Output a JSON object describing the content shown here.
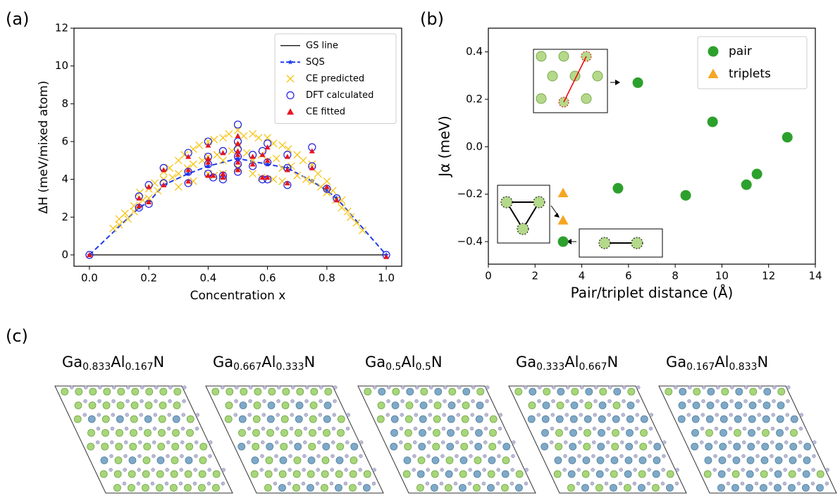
{
  "panel_labels": [
    "(a)",
    "(b)",
    "(c)"
  ],
  "chart_data": [
    {
      "type": "scatter",
      "xlabel": "Concentration x",
      "ylabel": "ΔH (meV/mixed atom)",
      "xlim": [
        -0.052,
        1.052
      ],
      "ylim": [
        -0.6,
        12
      ],
      "xticks": [
        {
          "value": 0,
          "label": "0.0"
        },
        0.2,
        0.4,
        0.6,
        0.8,
        {
          "value": 1,
          "label": "1.0"
        }
      ],
      "yticks": [
        0,
        2,
        4,
        6,
        8,
        10,
        12
      ],
      "legend": "upper right",
      "series": [
        {
          "name": "GS line",
          "style": "line",
          "color": "#000000",
          "x": [
            0,
            1
          ],
          "values": [
            0,
            0
          ]
        },
        {
          "name": "SQS",
          "style": "dashed-star",
          "color": "#1f3ee8",
          "x": [
            0,
            0.167,
            0.2,
            0.25,
            0.333,
            0.4,
            0.5,
            0.6,
            0.667,
            0.75,
            0.8,
            0.833,
            1
          ],
          "values": [
            0,
            2.5,
            2.8,
            3.7,
            4.3,
            4.7,
            5.1,
            4.8,
            4.6,
            3.9,
            3.4,
            3.0,
            0
          ]
        },
        {
          "name": "CE predicted",
          "style": "x",
          "color": "#f5c518",
          "x": [
            0.08,
            0.1,
            0.1,
            0.12,
            0.13,
            0.15,
            0.15,
            0.17,
            0.18,
            0.2,
            0.2,
            0.22,
            0.23,
            0.25,
            0.25,
            0.27,
            0.28,
            0.3,
            0.3,
            0.32,
            0.33,
            0.35,
            0.35,
            0.37,
            0.38,
            0.4,
            0.4,
            0.42,
            0.43,
            0.45,
            0.45,
            0.47,
            0.48,
            0.5,
            0.5,
            0.52,
            0.53,
            0.55,
            0.55,
            0.57,
            0.58,
            0.6,
            0.6,
            0.62,
            0.63,
            0.65,
            0.65,
            0.67,
            0.68,
            0.7,
            0.7,
            0.72,
            0.73,
            0.75,
            0.75,
            0.77,
            0.78,
            0.8,
            0.8,
            0.82,
            0.83,
            0.85,
            0.85,
            0.87,
            0.88,
            0.9,
            0.92,
            0.35,
            0.42,
            0.45,
            0.55,
            0.58,
            0.62,
            0.5,
            0.4,
            0.3,
            0.65
          ],
          "values": [
            1.4,
            1.9,
            1.6,
            2.2,
            1.9,
            2.6,
            2.3,
            3.3,
            2.9,
            3.5,
            3.0,
            3.8,
            3.4,
            4.4,
            4.0,
            4.6,
            4.1,
            5.0,
            4.3,
            5.3,
            4.6,
            5.6,
            4.8,
            5.8,
            5.0,
            6.0,
            5.2,
            6.1,
            5.3,
            6.2,
            5.0,
            6.4,
            5.5,
            6.6,
            5.8,
            6.3,
            5.4,
            6.4,
            5.0,
            6.2,
            5.3,
            6.2,
            5.0,
            5.9,
            5.1,
            5.8,
            4.6,
            5.6,
            4.7,
            5.3,
            4.2,
            5.0,
            4.0,
            4.8,
            3.9,
            4.3,
            3.6,
            3.9,
            3.3,
            3.4,
            2.9,
            2.9,
            2.5,
            2.3,
            2.0,
            1.7,
            1.3,
            3.9,
            4.2,
            4.3,
            4.3,
            4.1,
            4.0,
            4.6,
            4.3,
            3.6,
            3.9
          ]
        },
        {
          "name": "DFT calculated",
          "style": "circle-open",
          "color": "#2020e0",
          "x": [
            0,
            1,
            0.167,
            0.167,
            0.2,
            0.2,
            0.25,
            0.25,
            0.333,
            0.333,
            0.333,
            0.4,
            0.4,
            0.4,
            0.4,
            0.45,
            0.45,
            0.5,
            0.5,
            0.5,
            0.5,
            0.5,
            0.5,
            0.55,
            0.55,
            0.6,
            0.6,
            0.6,
            0.583,
            0.667,
            0.667,
            0.667,
            0.75,
            0.75,
            0.8,
            0.833,
            0.45,
            0.417,
            0.583
          ],
          "values": [
            0,
            0,
            3.1,
            2.5,
            3.7,
            2.7,
            4.6,
            3.8,
            5.4,
            4.4,
            3.8,
            6.0,
            5.2,
            4.8,
            4.3,
            5.5,
            4.2,
            6.9,
            6.0,
            5.6,
            5.2,
            4.8,
            4.4,
            5.3,
            4.7,
            5.9,
            4.9,
            4.0,
            4.0,
            5.3,
            4.6,
            3.7,
            5.7,
            4.7,
            3.5,
            3.0,
            4.0,
            4.1,
            5.5
          ]
        },
        {
          "name": "CE fitted",
          "style": "triangle",
          "color": "#e8141e",
          "x": [
            0,
            1,
            0.167,
            0.167,
            0.2,
            0.2,
            0.25,
            0.25,
            0.333,
            0.333,
            0.333,
            0.4,
            0.4,
            0.4,
            0.4,
            0.45,
            0.45,
            0.5,
            0.5,
            0.5,
            0.5,
            0.5,
            0.5,
            0.55,
            0.55,
            0.6,
            0.6,
            0.6,
            0.583,
            0.667,
            0.667,
            0.667,
            0.75,
            0.75,
            0.8,
            0.833,
            0.45,
            0.417,
            0.583
          ],
          "values": [
            0,
            -0.1,
            3.0,
            2.6,
            3.6,
            2.8,
            4.5,
            3.7,
            5.2,
            4.5,
            3.9,
            5.8,
            5.1,
            4.9,
            4.2,
            5.4,
            4.3,
            6.3,
            5.9,
            5.5,
            5.3,
            4.9,
            4.5,
            5.2,
            4.8,
            5.7,
            5.0,
            4.1,
            4.1,
            5.2,
            4.5,
            3.8,
            5.5,
            4.6,
            3.6,
            2.9,
            4.1,
            4.2,
            5.3
          ]
        }
      ]
    },
    {
      "type": "scatter",
      "xlabel": "Pair/triplet distance (Å)",
      "ylabel": "Jα (meV)",
      "xlim": [
        0,
        14
      ],
      "ylim": [
        -0.495,
        0.5
      ],
      "xticks": [
        0,
        2,
        4,
        6,
        8,
        10,
        12,
        14
      ],
      "yticks": [
        {
          "value": -0.4,
          "label": "−0.4"
        },
        {
          "value": -0.2,
          "label": "−0.2"
        },
        {
          "value": 0,
          "label": "0.0"
        },
        0.2,
        0.4
      ],
      "legend": "upper right",
      "series": [
        {
          "name": "pair",
          "style": "circle",
          "color": "#2ca02c",
          "x": [
            3.2,
            5.55,
            6.4,
            8.45,
            9.6,
            11.05,
            11.5,
            12.8
          ],
          "values": [
            -0.4,
            -0.175,
            0.27,
            -0.205,
            0.105,
            -0.16,
            -0.115,
            0.04
          ]
        },
        {
          "name": "triplets",
          "style": "triangle",
          "color": "#f5a623",
          "x": [
            3.2,
            3.2
          ],
          "values": [
            -0.195,
            -0.31
          ]
        }
      ]
    }
  ],
  "structures": [
    {
      "formula": [
        "Ga",
        "0.833",
        "Al",
        "0.167",
        "N"
      ]
    },
    {
      "formula": [
        "Ga",
        "0.667",
        "Al",
        "0.333",
        "N"
      ]
    },
    {
      "formula": [
        "Ga",
        "0.5",
        "Al",
        "0.5",
        "N"
      ]
    },
    {
      "formula": [
        "Ga",
        "0.333",
        "Al",
        "0.667",
        "N"
      ]
    },
    {
      "formula": [
        "Ga",
        "0.167",
        "Al",
        "0.833",
        "N"
      ]
    }
  ]
}
